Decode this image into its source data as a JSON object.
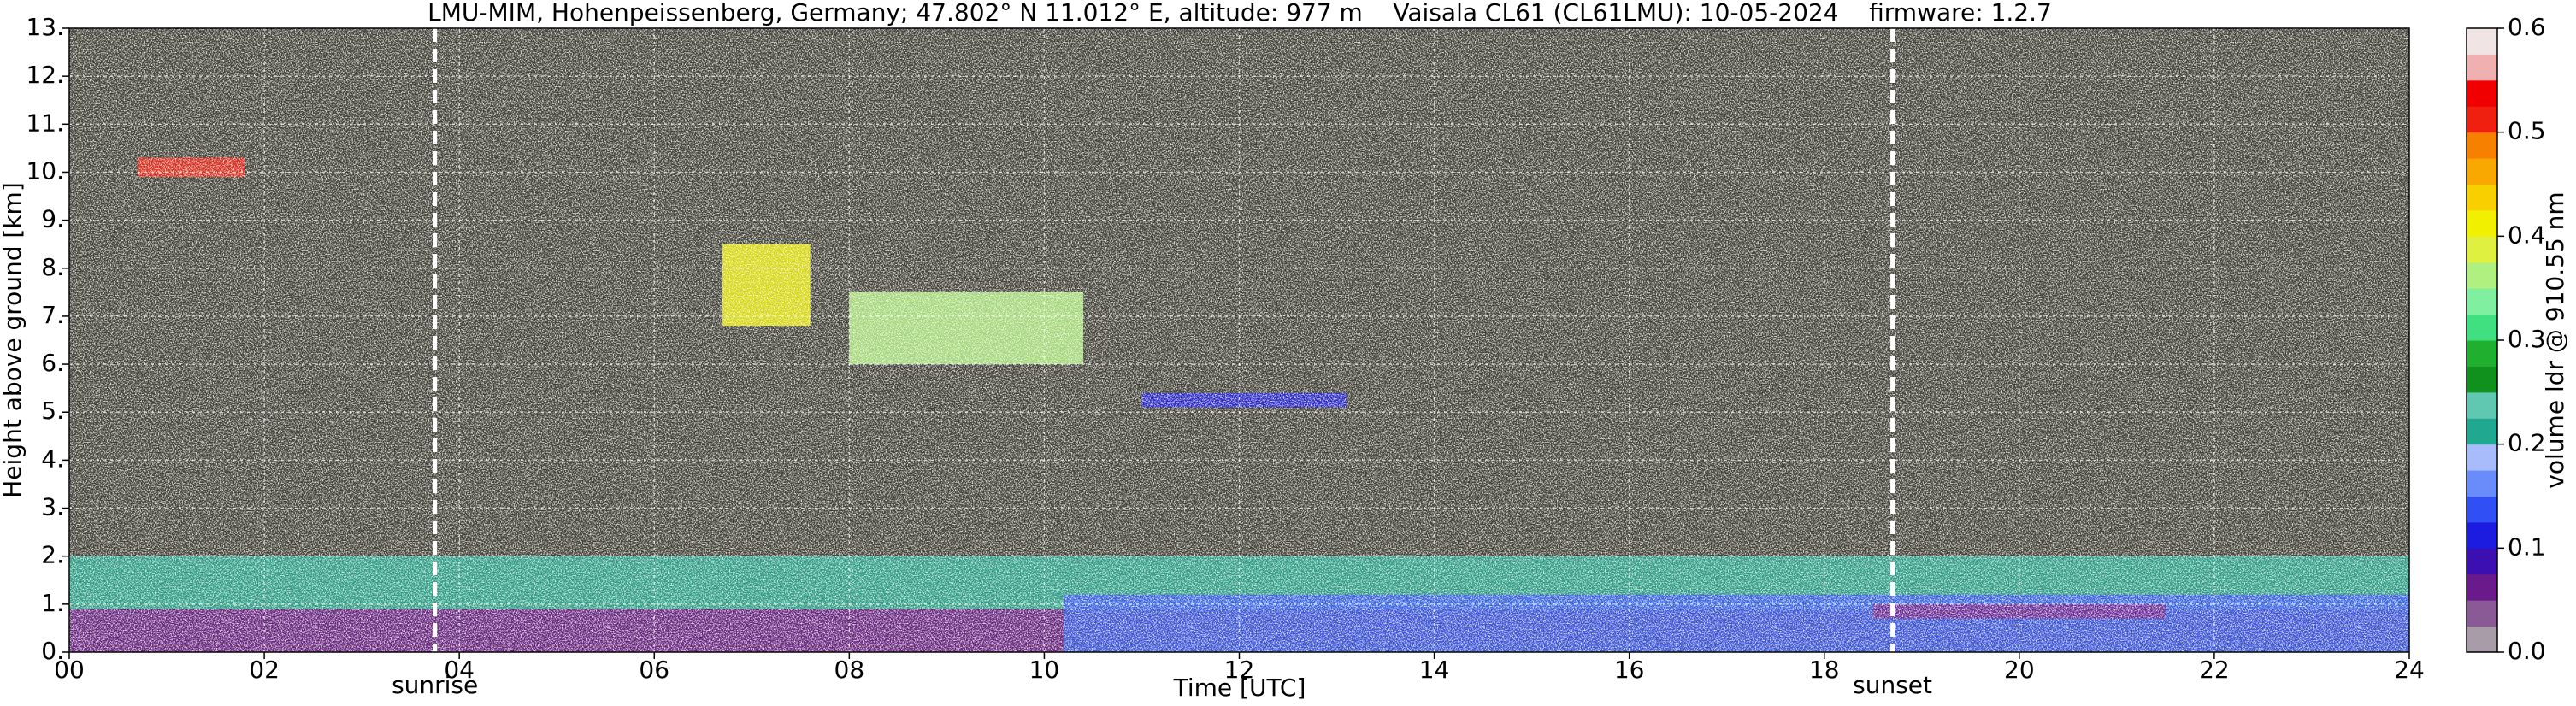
{
  "chart_data": {
    "type": "heatmap",
    "title": "LMU-MIM, Hohenpeissenberg, Germany; 47.802° N 11.012° E, altitude: 977 m    Vaisala CL61 (CL61LMU): 10-05-2024    firmware: 1.2.7",
    "x_label": "Time [UTC]",
    "y_label": "Height above ground [km]",
    "colorbar_label": "volume ldr @ 910.55 nm",
    "xlim": [
      0,
      24
    ],
    "xticks": [
      {
        "value": 0,
        "label": "00"
      },
      {
        "value": 2,
        "label": "02"
      },
      {
        "value": 4,
        "label": "04"
      },
      {
        "value": 6,
        "label": "06"
      },
      {
        "value": 8,
        "label": "08"
      },
      10,
      12,
      14,
      16,
      18,
      20,
      22,
      24
    ],
    "ylim": [
      0,
      13
    ],
    "yticks": [
      {
        "value": 0,
        "label": "0."
      },
      {
        "value": 1,
        "label": "1."
      },
      {
        "value": 2,
        "label": "2."
      },
      {
        "value": 3,
        "label": "3."
      },
      {
        "value": 4,
        "label": "4."
      },
      {
        "value": 5,
        "label": "5."
      },
      {
        "value": 6,
        "label": "6."
      },
      {
        "value": 7,
        "label": "7."
      },
      {
        "value": 8,
        "label": "8."
      },
      {
        "value": 9,
        "label": "9."
      },
      {
        "value": 10,
        "label": "10."
      },
      {
        "value": 11,
        "label": "11."
      },
      {
        "value": 12,
        "label": "12."
      },
      {
        "value": 13,
        "label": "13."
      }
    ],
    "clim": [
      0,
      0.6
    ],
    "cticks": [
      {
        "value": 0,
        "label": "0.0"
      },
      0.1,
      0.2,
      0.3,
      0.4,
      0.5,
      0.6
    ],
    "colormap": [
      "#a89ca8",
      "#8a5a96",
      "#6a1a8a",
      "#3c10b0",
      "#1c1ce0",
      "#3050f5",
      "#6a8cfa",
      "#a8bcfb",
      "#20a890",
      "#60c8b0",
      "#10901c",
      "#20b030",
      "#40e080",
      "#80f0a0",
      "#b0f080",
      "#e0f040",
      "#f0f000",
      "#f8d000",
      "#f8a800",
      "#f88000",
      "#f02010",
      "#f00000",
      "#f0b0b0",
      "#f0e4e4"
    ],
    "grid": true,
    "annotations": [
      {
        "x": 3.75,
        "text": "sunrise"
      },
      {
        "x": 18.7,
        "text": "sunset"
      }
    ],
    "regions": [
      {
        "x": [
          0,
          10.2
        ],
        "y": [
          0,
          0.9
        ],
        "value": 0.06
      },
      {
        "x": [
          0,
          24
        ],
        "y": [
          0.9,
          2
        ],
        "value": 0.22
      },
      {
        "x": [
          10.2,
          24
        ],
        "y": [
          0,
          1.2
        ],
        "value": 0.13
      },
      {
        "x": [
          18.5,
          21.5
        ],
        "y": [
          0.7,
          1
        ],
        "value": 0.06
      },
      {
        "x": [
          0.7,
          1.8
        ],
        "y": [
          9.9,
          10.3
        ],
        "value": 0.5
      },
      {
        "x": [
          6.7,
          7.6
        ],
        "y": [
          6.8,
          8.5
        ],
        "value": 0.4
      },
      {
        "x": [
          8,
          10.4
        ],
        "y": [
          6,
          7.5
        ],
        "value": 0.36
      },
      {
        "x": [
          11,
          13.1
        ],
        "y": [
          5.1,
          5.4
        ],
        "value": 0.11
      }
    ]
  }
}
